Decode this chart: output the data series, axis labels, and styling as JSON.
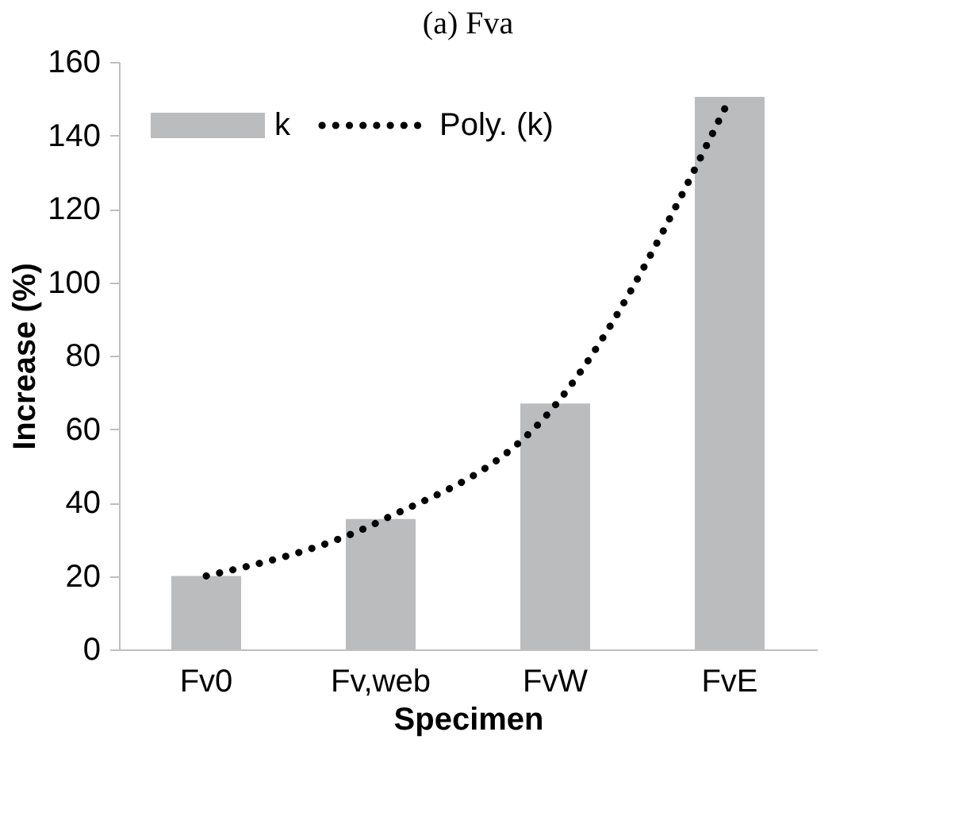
{
  "chart_data": {
    "type": "bar",
    "title": "(a) Fva",
    "xlabel": "Specimen",
    "ylabel": "Increase (%)",
    "categories": [
      "Fv0",
      "Fv,web",
      "FvW",
      "FvE"
    ],
    "series": [
      {
        "name": "k",
        "color": "#bbbcbe",
        "values": [
          20,
          35.5,
          67,
          150.5
        ]
      },
      {
        "name": "Poly. (k)",
        "type": "line",
        "line_style": "dotted",
        "color": "#000000",
        "x": [
          "Fv0",
          "Fv,web",
          "FvW",
          "FvE"
        ],
        "values": [
          20,
          35,
          66.5,
          150
        ]
      }
    ],
    "ylim": [
      0,
      160
    ],
    "yticks": [
      0,
      20,
      40,
      60,
      80,
      100,
      120,
      140,
      160
    ],
    "grid": false,
    "legend": "top left"
  }
}
